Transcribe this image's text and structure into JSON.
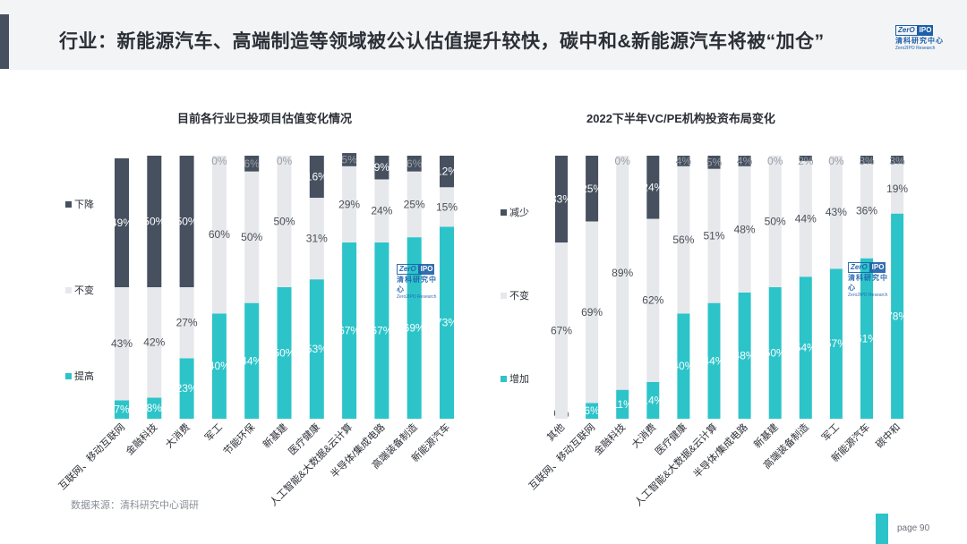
{
  "header": {
    "title": "行业：新能源汽车、高端制造等领域被公认估值提升较快，碳中和&新能源汽车将被“加仓”",
    "logo_zero": "ZerO",
    "logo_ipo": "IPO",
    "logo_cn": "清科研究中心",
    "logo_en": "Zero2IPO Research"
  },
  "source": "数据来源：清科研究中心调研",
  "page": "page 90",
  "colors": {
    "up": "#2cc4c9",
    "same": "#e6e8eb",
    "down": "#46505f",
    "label_dark": "#4a4f57",
    "label_light": "#ffffff"
  },
  "chart_data": [
    {
      "type": "bar",
      "stacked": true,
      "title": "目前各行业已投项目估值变化情况",
      "categories": [
        "互联网、移动互联网",
        "金融科技",
        "大消费",
        "军工",
        "节能环保",
        "新基建",
        "医疗健康",
        "人工智能&大数据&云计算",
        "半导体/集成电路",
        "高端装备制造",
        "新能源汽车"
      ],
      "series": [
        {
          "name": "提高",
          "values": [
            7,
            8,
            23,
            40,
            44,
            50,
            53,
            67,
            67,
            69,
            73
          ]
        },
        {
          "name": "不变",
          "values": [
            43,
            42,
            27,
            60,
            50,
            50,
            31,
            29,
            24,
            25,
            15
          ]
        },
        {
          "name": "下降",
          "values": [
            49,
            50,
            50,
            0,
            6,
            0,
            16,
            5,
            9,
            6,
            12
          ]
        }
      ],
      "legend": "left",
      "ylim": [
        0,
        100
      ]
    },
    {
      "type": "bar",
      "stacked": true,
      "title": "2022下半年VC/PE机构投资布局变化",
      "categories": [
        "其他",
        "互联网、移动互联网",
        "金融科技",
        "大消费",
        "医疗健康",
        "人工智能&大数据&云计算",
        "半导体/集成电路",
        "新基建",
        "高端装备制造",
        "军工",
        "新能源汽车",
        "碳中和"
      ],
      "series": [
        {
          "name": "增加",
          "values": [
            0,
            6,
            11,
            14,
            40,
            44,
            48,
            50,
            54,
            57,
            61,
            78
          ]
        },
        {
          "name": "不变",
          "values": [
            67,
            69,
            89,
            62,
            56,
            51,
            48,
            50,
            44,
            43,
            36,
            19
          ]
        },
        {
          "name": "减少",
          "values": [
            33,
            25,
            0,
            24,
            4,
            5,
            4,
            0,
            2,
            0,
            3,
            3
          ]
        }
      ],
      "legend": "left",
      "ylim": [
        0,
        100
      ]
    }
  ]
}
